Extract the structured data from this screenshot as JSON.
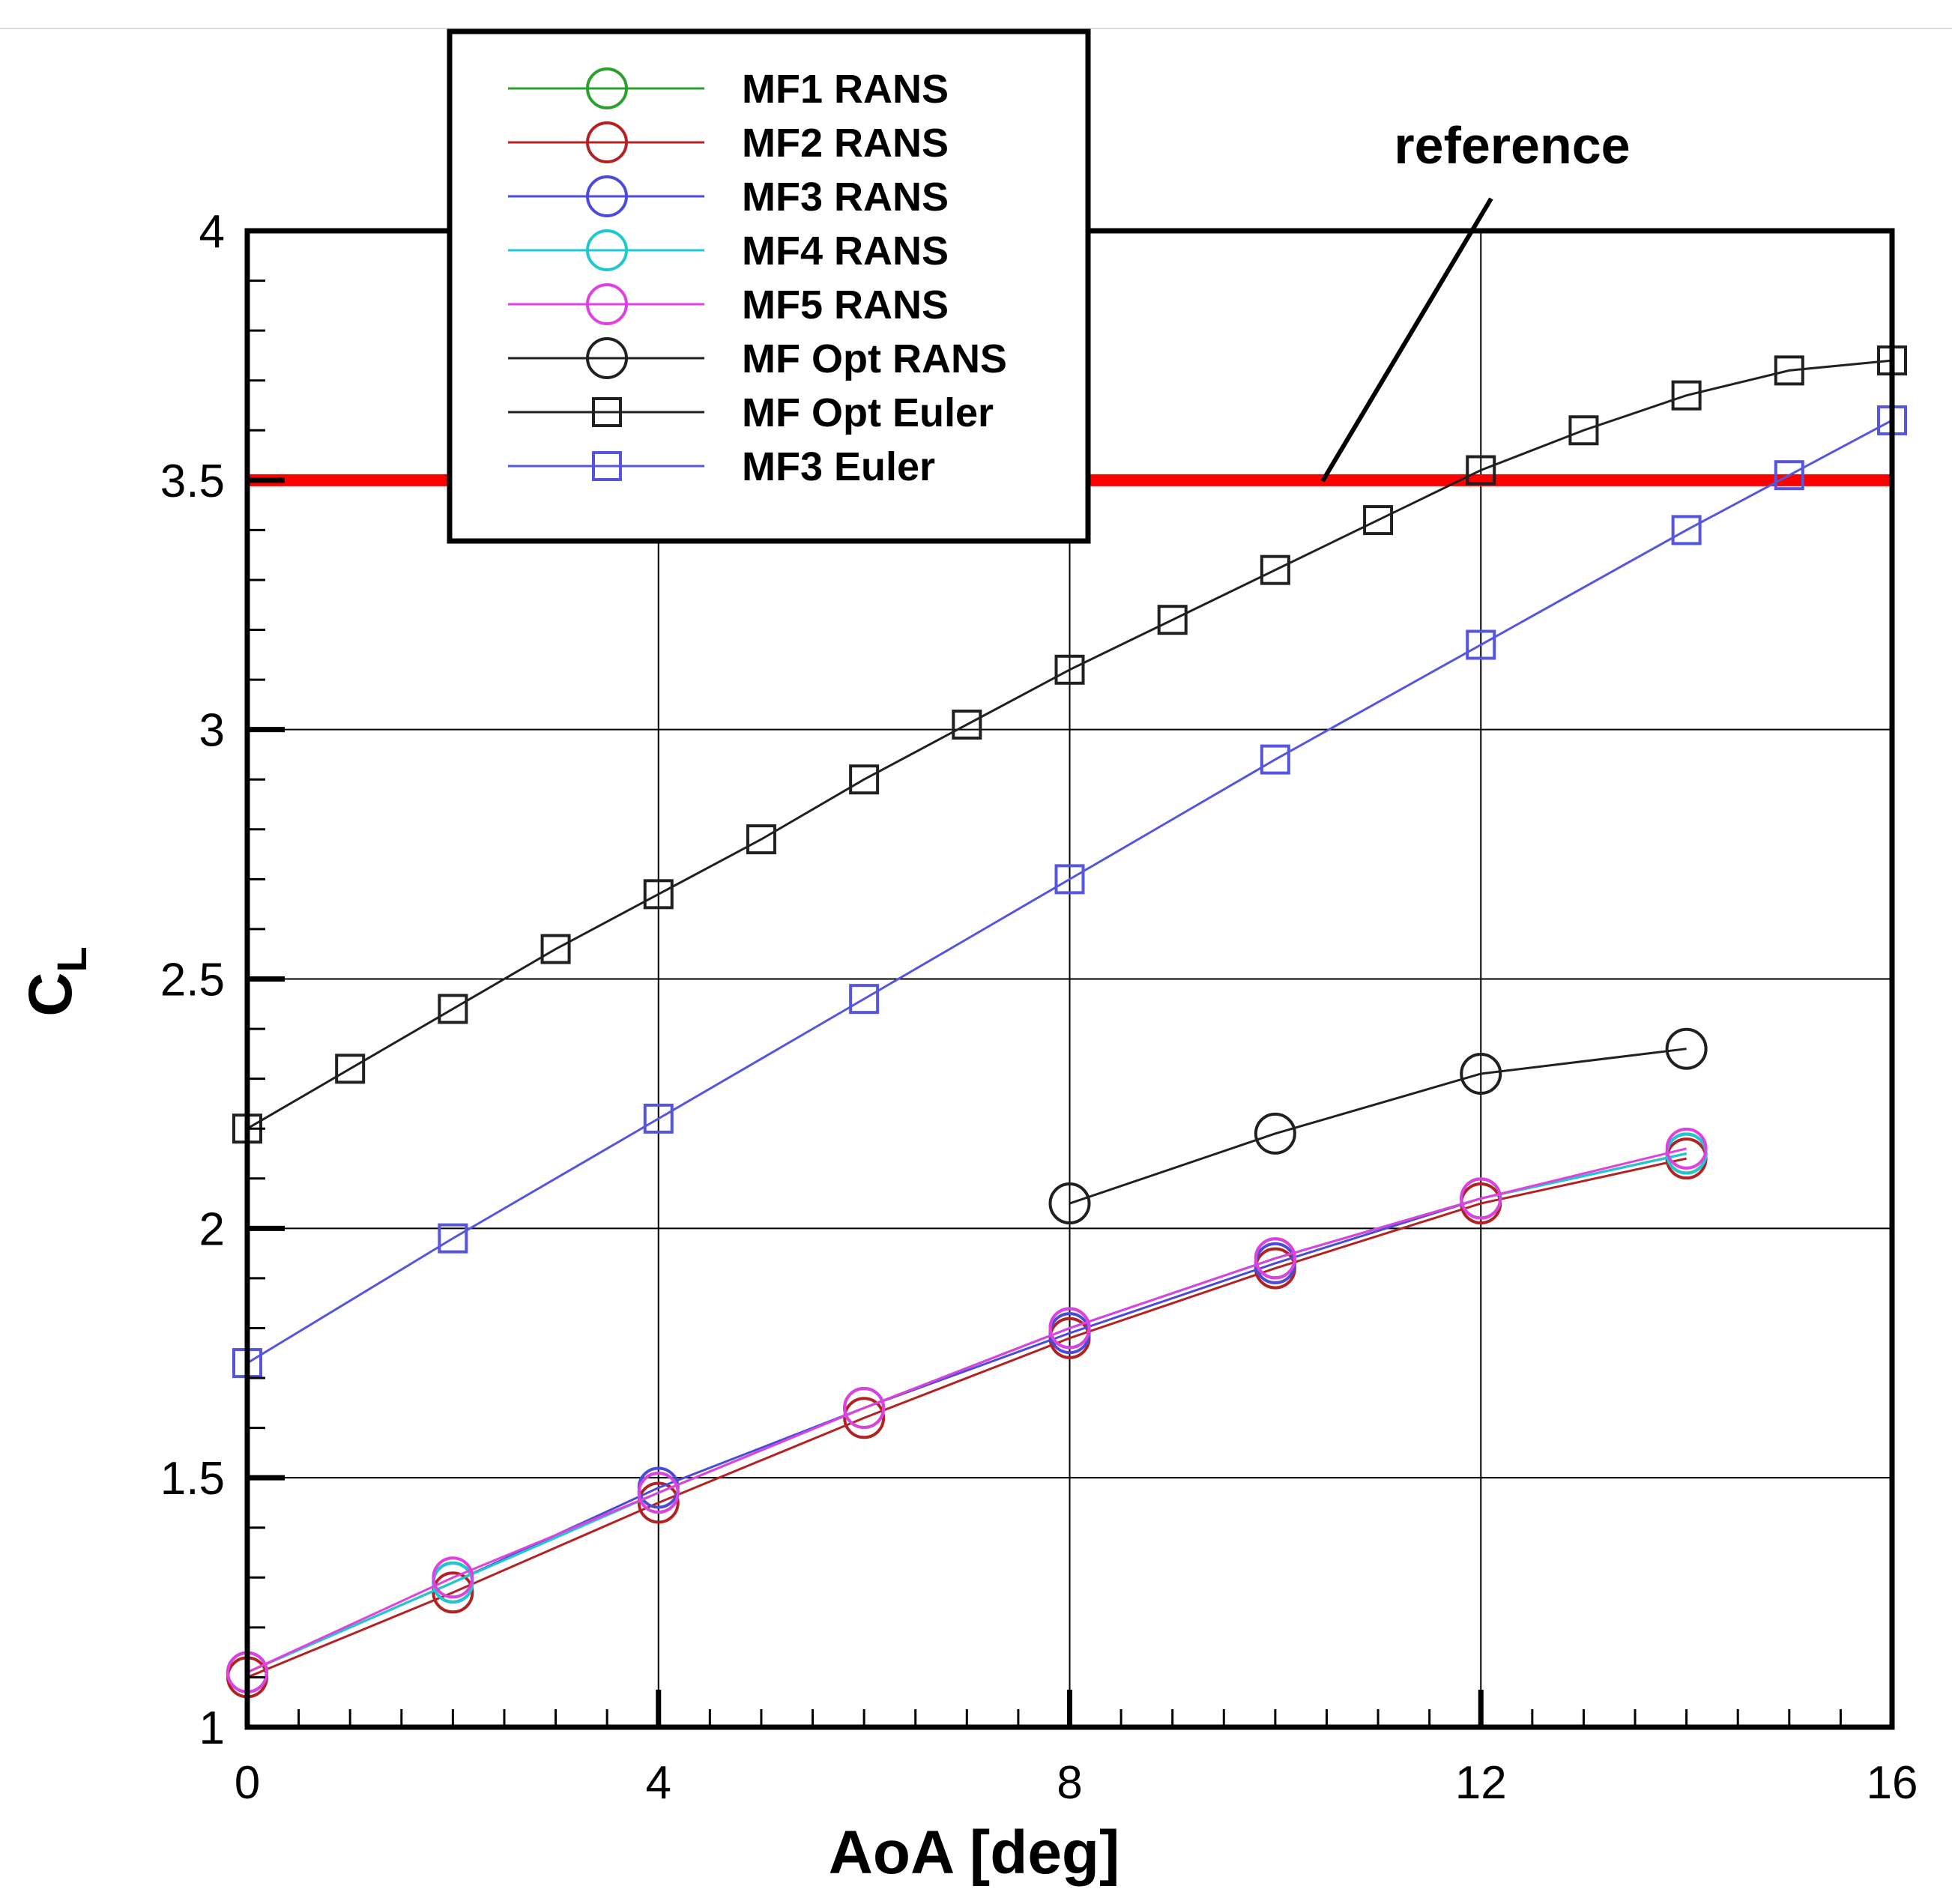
{
  "chart_data": {
    "type": "line",
    "title": "",
    "xlabel": "AoA [deg]",
    "ylabel_main": "C",
    "ylabel_sub": "L",
    "xlim": [
      0,
      16
    ],
    "ylim": [
      1,
      4
    ],
    "xticks": [
      0,
      4,
      8,
      12,
      16
    ],
    "xtick_labels": [
      "0",
      "4",
      "8",
      "12",
      "16"
    ],
    "yticks": [
      1,
      1.5,
      2,
      2.5,
      3,
      3.5,
      4
    ],
    "ytick_labels": [
      "1",
      "1.5",
      "2",
      "2.5",
      "3",
      "3.5",
      "4"
    ],
    "grid": true,
    "legend_position": "top-left",
    "reference": {
      "label": "reference",
      "value": 3.5,
      "color": "#ff0000"
    },
    "series": [
      {
        "name": "MF1 RANS",
        "color": "#2ca02c",
        "marker": "circle",
        "x": [
          0,
          2,
          4,
          6,
          8,
          10,
          12,
          14
        ],
        "y": [
          1.11,
          1.29,
          1.47,
          1.64,
          1.8,
          1.94,
          2.06,
          2.15
        ]
      },
      {
        "name": "MF2 RANS",
        "color": "#b22222",
        "marker": "circle",
        "x": [
          0,
          2,
          4,
          6,
          8,
          10,
          12,
          14
        ],
        "y": [
          1.1,
          1.27,
          1.45,
          1.62,
          1.78,
          1.92,
          2.05,
          2.14
        ]
      },
      {
        "name": "MF3 RANS",
        "color": "#4b4bd9",
        "marker": "circle",
        "x": [
          0,
          2,
          4,
          6,
          8,
          10,
          12,
          14
        ],
        "y": [
          1.11,
          1.29,
          1.48,
          1.64,
          1.79,
          1.93,
          2.06,
          2.15
        ]
      },
      {
        "name": "MF4 RANS",
        "color": "#1ec8d0",
        "marker": "circle",
        "x": [
          0,
          2,
          4,
          6,
          8,
          10,
          12,
          14
        ],
        "y": [
          1.11,
          1.29,
          1.47,
          1.64,
          1.8,
          1.94,
          2.06,
          2.15
        ]
      },
      {
        "name": "MF5 RANS",
        "color": "#e040e0",
        "marker": "circle",
        "x": [
          0,
          2,
          4,
          6,
          8,
          10,
          12,
          14
        ],
        "y": [
          1.11,
          1.3,
          1.47,
          1.64,
          1.8,
          1.94,
          2.06,
          2.16
        ]
      },
      {
        "name": "MF Opt RANS",
        "color": "#202020",
        "marker": "circle",
        "x": [
          8,
          10,
          12,
          14
        ],
        "y": [
          2.05,
          2.19,
          2.31,
          2.36
        ]
      },
      {
        "name": "MF Opt Euler",
        "color": "#202020",
        "marker": "square",
        "x": [
          0,
          1,
          2,
          3,
          4,
          5,
          6,
          7,
          8,
          9,
          10,
          11,
          12,
          13,
          14,
          15,
          16
        ],
        "y": [
          2.2,
          2.32,
          2.44,
          2.56,
          2.67,
          2.78,
          2.9,
          3.01,
          3.12,
          3.22,
          3.32,
          3.42,
          3.52,
          3.6,
          3.67,
          3.72,
          3.74
        ]
      },
      {
        "name": "MF3 Euler",
        "color": "#5555dd",
        "marker": "square",
        "x": [
          0,
          2,
          4,
          6,
          8,
          10,
          12,
          14,
          15,
          16
        ],
        "y": [
          1.73,
          1.98,
          2.22,
          2.46,
          2.7,
          2.94,
          3.17,
          3.4,
          3.51,
          3.62
        ]
      }
    ]
  }
}
